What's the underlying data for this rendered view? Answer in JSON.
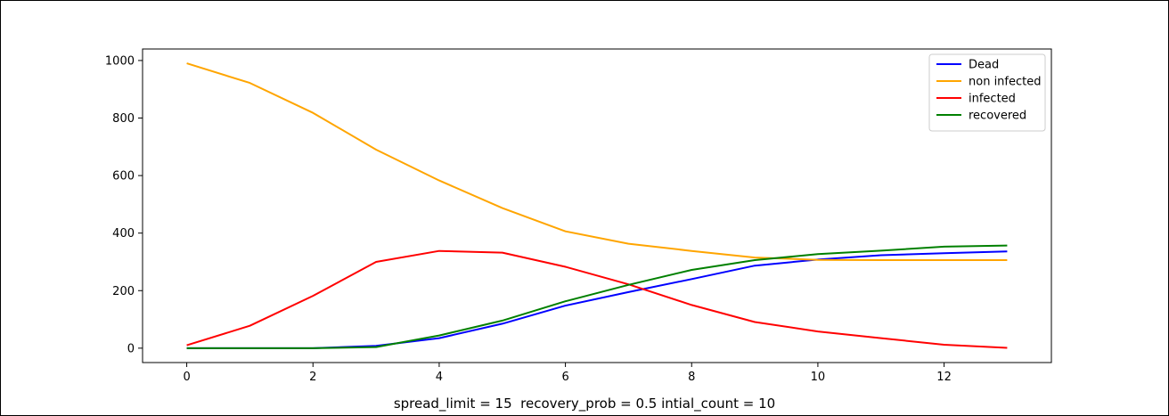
{
  "caption": "spread_limit = 15  recovery_prob = 0.5 intial_count = 10",
  "chart_data": {
    "type": "line",
    "title": "",
    "xlabel": "",
    "ylabel": "",
    "x": [
      0,
      1,
      2,
      3,
      4,
      5,
      6,
      7,
      8,
      9,
      10,
      11,
      12,
      13
    ],
    "xlim": [
      -0.7,
      13.7
    ],
    "ylim": [
      -50,
      1040
    ],
    "xticks": [
      0,
      2,
      4,
      6,
      8,
      10,
      12
    ],
    "yticks": [
      0,
      200,
      400,
      600,
      800,
      1000
    ],
    "grid": false,
    "legend_position": "top-right",
    "series": [
      {
        "name": "Dead",
        "color": "#0000ff",
        "values": [
          0,
          0,
          0,
          8,
          35,
          85,
          148,
          195,
          240,
          287,
          308,
          323,
          330,
          336
        ]
      },
      {
        "name": "non infected",
        "color": "#ffa500",
        "values": [
          990,
          922,
          818,
          690,
          583,
          487,
          406,
          363,
          338,
          315,
          307,
          306,
          306,
          306
        ]
      },
      {
        "name": "infected",
        "color": "#ff0000",
        "values": [
          10,
          78,
          182,
          300,
          338,
          332,
          283,
          222,
          150,
          91,
          58,
          35,
          12,
          1
        ]
      },
      {
        "name": "recovered",
        "color": "#008000",
        "values": [
          0,
          0,
          0,
          4,
          44,
          96,
          163,
          220,
          272,
          306,
          327,
          339,
          353,
          357
        ]
      }
    ]
  }
}
